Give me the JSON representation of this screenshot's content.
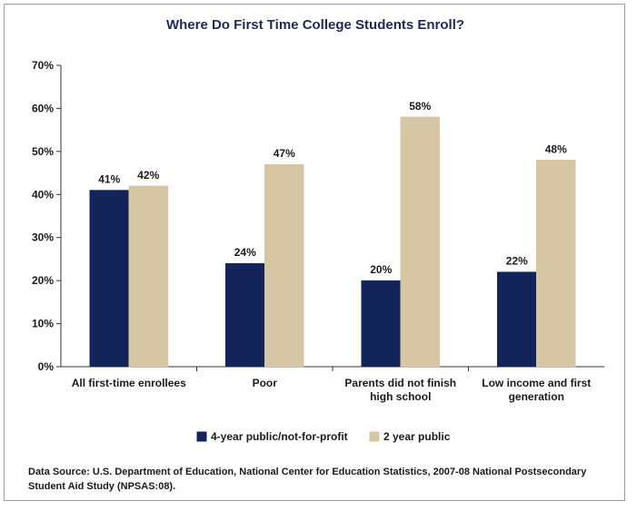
{
  "chart_data": {
    "type": "bar",
    "title": "Where Do First Time College Students Enroll?",
    "categories": [
      [
        "All first-time enrollees"
      ],
      [
        "Poor"
      ],
      [
        "Parents did not finish",
        "high school"
      ],
      [
        "Low income and first",
        "generation"
      ]
    ],
    "series": [
      {
        "name": "4-year public/not-for-profit",
        "values": [
          41,
          24,
          20,
          22
        ],
        "labels": [
          "41%",
          "24%",
          "20%",
          "22%"
        ],
        "color": "#13245a"
      },
      {
        "name": "2 year public",
        "values": [
          42,
          47,
          58,
          48
        ],
        "labels": [
          "42%",
          "47%",
          "58%",
          "48%"
        ],
        "color": "#d6c6a4"
      }
    ],
    "ylim": [
      0,
      70
    ],
    "yticks": [
      "0%",
      "10%",
      "20%",
      "30%",
      "40%",
      "50%",
      "60%",
      "70%"
    ],
    "legend": "bottom",
    "grid": false
  },
  "source": "Data Source: U.S. Department of Education, National Center for Education Statistics, 2007-08 National Postsecondary Student Aid Study (NPSAS:08)."
}
